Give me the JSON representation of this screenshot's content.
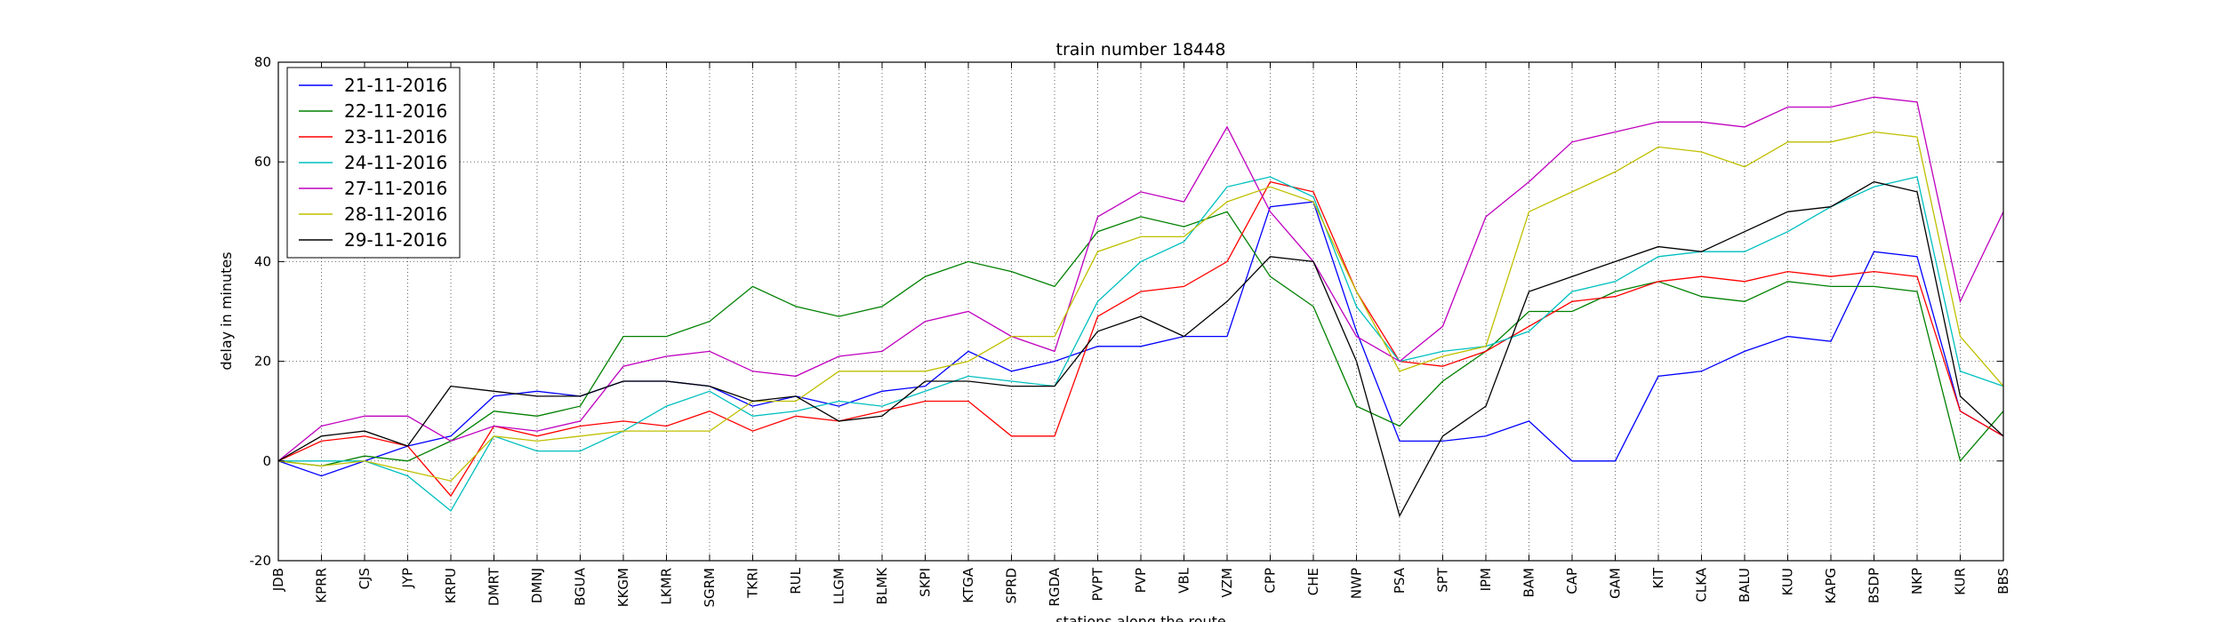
{
  "chart_data": {
    "type": "line",
    "title": "train number 18448",
    "xlabel": "stations along the route",
    "ylabel": "delay in minutes",
    "ylim": [
      -20,
      80
    ],
    "yticks": [
      -20,
      0,
      20,
      40,
      60,
      80
    ],
    "grid": true,
    "legend_position": "top-left",
    "categories": [
      "JDB",
      "KPRR",
      "CJS",
      "JYP",
      "KRPU",
      "DMRT",
      "DMNJ",
      "BGUA",
      "KKGM",
      "LKMR",
      "SGRM",
      "TKRI",
      "RUL",
      "LLGM",
      "BLMK",
      "SKPI",
      "KTGA",
      "SPRD",
      "RGDA",
      "PVPT",
      "PVP",
      "VBL",
      "VZM",
      "CPP",
      "CHE",
      "NWP",
      "PSA",
      "SPT",
      "IPM",
      "BAM",
      "CAP",
      "GAM",
      "KIT",
      "CLKA",
      "BALU",
      "KUU",
      "KAPG",
      "BSDP",
      "NKP",
      "KUR",
      "BBS"
    ],
    "series": [
      {
        "name": "21-11-2016",
        "color": "#0000ff",
        "values": [
          0,
          -3,
          0,
          3,
          5,
          13,
          14,
          13,
          16,
          16,
          15,
          11,
          13,
          11,
          14,
          15,
          22,
          18,
          20,
          23,
          23,
          25,
          25,
          51,
          52,
          26,
          4,
          4,
          5,
          8,
          0,
          0,
          17,
          18,
          22,
          25,
          24,
          42,
          41,
          10,
          5
        ]
      },
      {
        "name": "22-11-2016",
        "color": "#008000",
        "values": [
          0,
          -1,
          1,
          0,
          4,
          10,
          9,
          11,
          25,
          25,
          28,
          35,
          31,
          29,
          31,
          37,
          40,
          38,
          35,
          46,
          49,
          47,
          50,
          37,
          31,
          11,
          7,
          16,
          22,
          30,
          30,
          34,
          36,
          33,
          32,
          36,
          35,
          35,
          34,
          0,
          10
        ]
      },
      {
        "name": "23-11-2016",
        "color": "#ff0000",
        "values": [
          0,
          4,
          5,
          3,
          -7,
          7,
          5,
          7,
          8,
          7,
          10,
          6,
          9,
          8,
          10,
          12,
          12,
          5,
          5,
          29,
          34,
          35,
          40,
          56,
          54,
          34,
          20,
          19,
          22,
          27,
          32,
          33,
          36,
          37,
          36,
          38,
          37,
          38,
          37,
          10,
          5
        ]
      },
      {
        "name": "24-11-2016",
        "color": "#00bfbf",
        "values": [
          0,
          0,
          0,
          -3,
          -10,
          5,
          2,
          2,
          6,
          11,
          14,
          9,
          10,
          12,
          11,
          14,
          17,
          16,
          15,
          32,
          40,
          44,
          55,
          57,
          53,
          31,
          20,
          22,
          23,
          26,
          34,
          36,
          41,
          42,
          42,
          46,
          51,
          55,
          57,
          18,
          15
        ]
      },
      {
        "name": "27-11-2016",
        "color": "#bf00bf",
        "values": [
          0,
          7,
          9,
          9,
          4,
          7,
          6,
          8,
          19,
          21,
          22,
          18,
          17,
          21,
          22,
          28,
          30,
          25,
          22,
          49,
          54,
          52,
          67,
          50,
          40,
          25,
          20,
          27,
          49,
          56,
          64,
          66,
          68,
          68,
          67,
          71,
          71,
          73,
          72,
          32,
          50
        ]
      },
      {
        "name": "28-11-2016",
        "color": "#bfbf00",
        "values": [
          0,
          -1,
          0,
          -2,
          -4,
          5,
          4,
          5,
          6,
          6,
          6,
          12,
          12,
          18,
          18,
          18,
          20,
          25,
          25,
          42,
          45,
          45,
          52,
          55,
          52,
          34,
          18,
          21,
          23,
          50,
          54,
          58,
          63,
          62,
          59,
          64,
          64,
          66,
          65,
          25,
          15
        ]
      },
      {
        "name": "29-11-2016",
        "color": "#000000",
        "values": [
          0,
          5,
          6,
          3,
          15,
          14,
          13,
          13,
          16,
          16,
          15,
          12,
          13,
          8,
          9,
          16,
          16,
          15,
          15,
          26,
          29,
          25,
          32,
          41,
          40,
          20,
          -11,
          5,
          11,
          34,
          37,
          40,
          43,
          42,
          46,
          50,
          51,
          56,
          54,
          13,
          5
        ]
      }
    ]
  }
}
